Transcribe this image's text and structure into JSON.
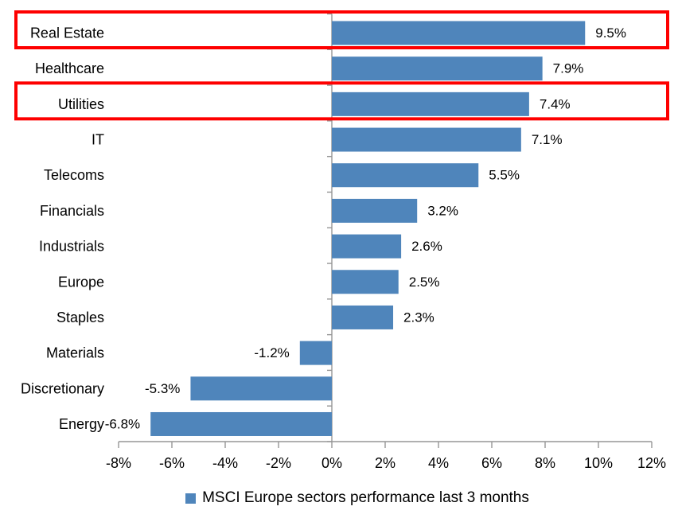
{
  "chart_data": {
    "type": "bar",
    "orientation": "horizontal",
    "title": "",
    "categories": [
      "Real Estate",
      "Healthcare",
      "Utilities",
      "IT",
      "Telecoms",
      "Financials",
      "Industrials",
      "Europe",
      "Staples",
      "Materials",
      "Discretionary",
      "Energy"
    ],
    "values": [
      9.5,
      7.9,
      7.4,
      7.1,
      5.5,
      3.2,
      2.6,
      2.5,
      2.3,
      -1.2,
      -5.3,
      -6.8
    ],
    "data_labels": [
      "9.5%",
      "7.9%",
      "7.4%",
      "7.1%",
      "5.5%",
      "3.2%",
      "2.6%",
      "2.5%",
      "2.3%",
      "-1.2%",
      "-5.3%",
      "-6.8%"
    ],
    "x_ticks": [
      -8,
      -6,
      -4,
      -2,
      0,
      2,
      4,
      6,
      8,
      10,
      12
    ],
    "x_tick_labels": [
      "-8%",
      "-6%",
      "-4%",
      "-2%",
      "0%",
      "2%",
      "4%",
      "6%",
      "8%",
      "10%",
      "12%"
    ],
    "xlim": [
      -8,
      12
    ],
    "grid": false,
    "legend_position": "bottom",
    "legend_label": "MSCI Europe sectors performance last 3 months",
    "highlighted_categories": [
      "Real Estate",
      "Utilities"
    ],
    "colors": {
      "bar": "#4f85bb",
      "axis": "#969696",
      "text": "#000000",
      "highlight_box": "#fe0000",
      "background": "#ffffff"
    }
  }
}
